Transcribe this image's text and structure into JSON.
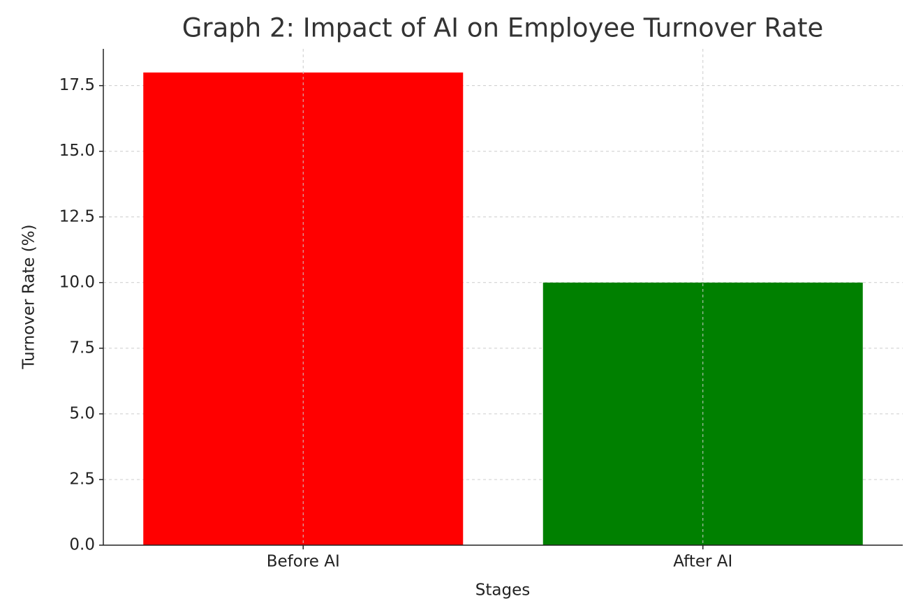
{
  "chart_data": {
    "type": "bar",
    "title": "Graph 2: Impact of AI on Employee Turnover Rate",
    "x_label": "Stages",
    "y_label": "Turnover Rate (%)",
    "categories": [
      "Before AI",
      "After AI"
    ],
    "values": [
      18,
      10
    ],
    "colors": [
      "#ff0000",
      "#008000"
    ],
    "ylim": [
      0,
      18.9
    ],
    "yticks": [
      {
        "value": 0,
        "label": "0.0"
      },
      2.5,
      {
        "value": 5,
        "label": "5.0"
      },
      7.5,
      {
        "value": 10,
        "label": "10.0"
      },
      12.5,
      {
        "value": 15,
        "label": "15.0"
      },
      17.5
    ],
    "grid": true
  }
}
